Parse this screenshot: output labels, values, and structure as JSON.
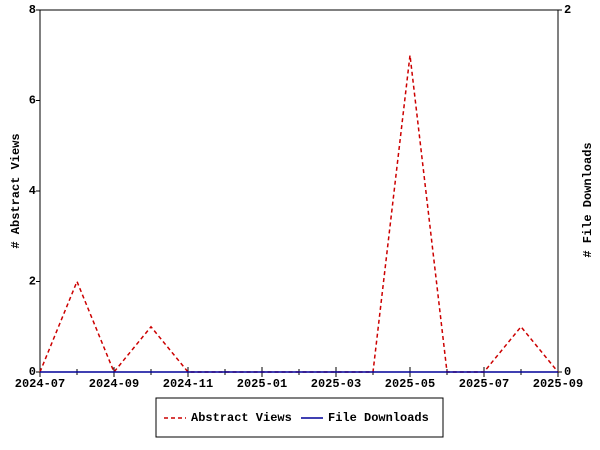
{
  "chart_data": {
    "type": "line",
    "x": [
      "2024-07",
      "2024-08",
      "2024-09",
      "2024-10",
      "2024-11",
      "2024-12",
      "2025-01",
      "2025-02",
      "2025-03",
      "2025-04",
      "2025-05",
      "2025-06",
      "2025-07",
      "2025-08",
      "2025-09"
    ],
    "xlim": [
      "2024-07",
      "2025-09"
    ],
    "xticks": [
      "2024-07",
      "2024-09",
      "2024-11",
      "2025-01",
      "2025-03",
      "2025-05",
      "2025-07",
      "2025-09"
    ],
    "ylabel": "# Abstract Views",
    "y2label": "# File Downloads",
    "ylim": [
      0,
      8
    ],
    "yticks": [
      0,
      2,
      4,
      6,
      8
    ],
    "y2lim": [
      0,
      2
    ],
    "y2ticks": [
      0,
      2
    ],
    "series": [
      {
        "name": "Abstract Views",
        "color": "#cc0000",
        "dashed": true,
        "values": [
          0,
          2,
          0,
          1,
          0,
          0,
          0,
          0,
          0,
          0,
          7,
          0,
          0,
          1,
          0
        ]
      },
      {
        "name": "File Downloads",
        "color": "#000099",
        "axis": "y2",
        "values": [
          0,
          0,
          0,
          0,
          0,
          0,
          0,
          0,
          0,
          0,
          0,
          0,
          0,
          0,
          0
        ]
      }
    ]
  }
}
